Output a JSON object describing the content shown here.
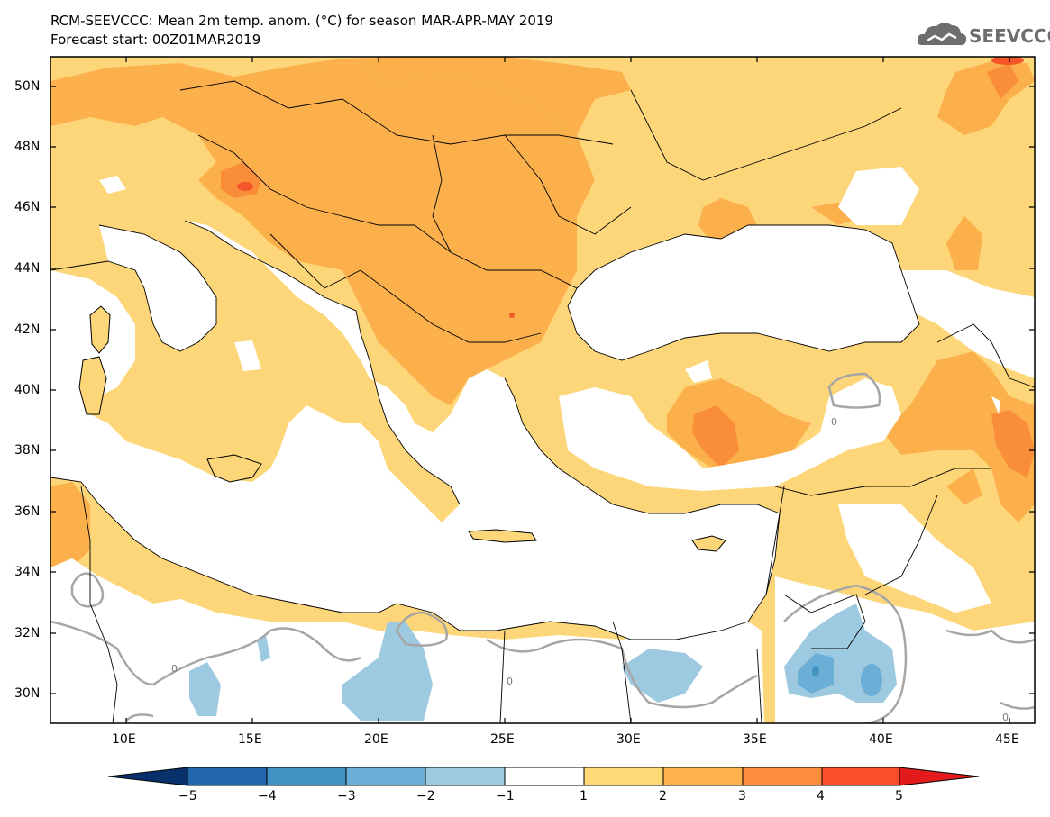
{
  "header": {
    "title_line1": "RCM-SEEVCCC: Mean 2m temp. anom. (°C) for season MAR-APR-MAY 2019",
    "title_line2": "Forecast start: 00Z01MAR2019",
    "logo_text": "SEEVCCC"
  },
  "axes": {
    "lat_labels": [
      "50N",
      "48N",
      "46N",
      "44N",
      "42N",
      "40N",
      "38N",
      "36N",
      "34N",
      "32N",
      "30N"
    ],
    "lon_labels": [
      "10E",
      "15E",
      "20E",
      "25E",
      "30E",
      "35E",
      "40E",
      "45E"
    ],
    "lat_range": [
      29,
      51
    ],
    "lon_range": [
      7,
      45.5
    ]
  },
  "colorbar": {
    "labels": [
      "−5",
      "−4",
      "−3",
      "−2",
      "−1",
      "1",
      "2",
      "3",
      "4",
      "5"
    ],
    "colors": [
      "#08306b",
      "#2166ac",
      "#4393c3",
      "#6baed6",
      "#9ecae1",
      "#ffffff",
      "#fed976",
      "#feb24c",
      "#fd8d3c",
      "#fc4e2a",
      "#e31a1c"
    ]
  },
  "contour_labels": {
    "zero": "0"
  },
  "colors": {
    "ocean": "#ffffff",
    "anomaly_1_2": "#fdd67a",
    "anomaly_2_3": "#fbb04b",
    "anomaly_3_4": "#f98d3a",
    "anomaly_4_5": "#f4562a",
    "anomaly_m1_m2": "#9ecae1",
    "anomaly_m2_m3": "#6baed6",
    "contour_zero": "#a6a6a6",
    "coast": "#000000"
  }
}
